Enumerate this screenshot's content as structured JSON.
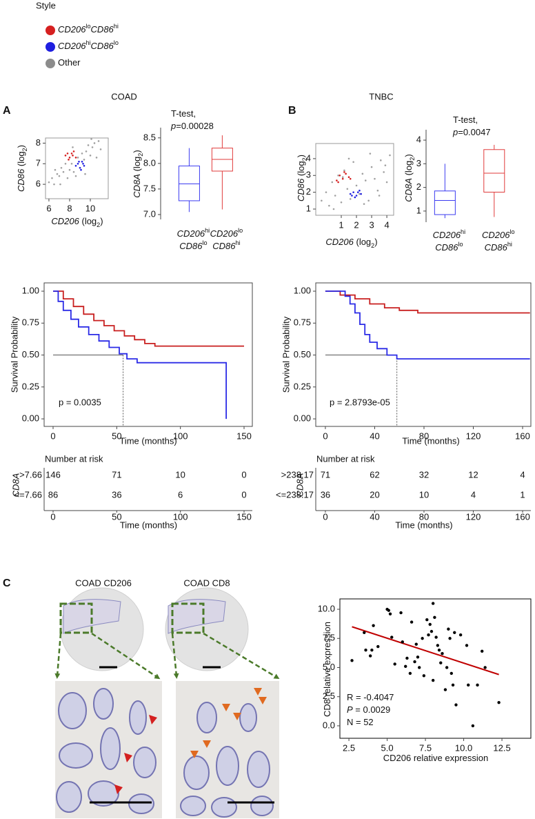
{
  "legend": {
    "title": "Style",
    "items": [
      {
        "color": "#d62020",
        "label": [
          {
            "t": "CD206",
            "s": "i"
          },
          {
            "t": "lo",
            "s": "sup"
          },
          {
            "t": "CD86",
            "s": "i"
          },
          {
            "t": "hi",
            "s": "sup"
          }
        ]
      },
      {
        "color": "#1f1fe0",
        "label": [
          {
            "t": "CD206",
            "s": "i"
          },
          {
            "t": "hi",
            "s": "sup"
          },
          {
            "t": "CD86",
            "s": "i"
          },
          {
            "t": "lo",
            "s": "sup"
          }
        ]
      },
      {
        "color": "#8c8c8c",
        "label": [
          {
            "t": "Other"
          }
        ]
      }
    ]
  },
  "panels": [
    {
      "letter": "A",
      "title": "COAD"
    },
    {
      "letter": "B",
      "title": "TNBC"
    },
    {
      "letter": "C"
    }
  ],
  "chart_data": [
    {
      "type": "scatter",
      "xlabel": [
        {
          "t": "CD206",
          "s": "i"
        },
        {
          "t": " (log"
        },
        {
          "t": "2",
          "s": "sub"
        },
        {
          "t": ")"
        }
      ],
      "ylabel": [
        {
          "t": "CD86",
          "s": "i"
        },
        {
          "t": " (log"
        },
        {
          "t": "2",
          "s": "sub"
        },
        {
          "t": ")"
        }
      ],
      "xlim": [
        5.67,
        11.73
      ],
      "ylim": [
        5.3,
        8.25
      ],
      "xticks": [
        6,
        8,
        10
      ],
      "yticks": [
        6,
        7,
        8
      ],
      "series": [
        {
          "color": "#a0a0a0",
          "x": [
            6.0,
            6.3,
            6.5,
            6.8,
            7.0,
            7.2,
            7.4,
            7.6,
            7.8,
            8.0,
            8.2,
            8.4,
            8.6,
            8.8,
            9.0,
            9.2,
            9.4,
            9.6,
            9.8,
            10.0,
            10.2,
            10.4,
            10.6,
            10.8,
            11.0,
            7.1,
            8.3,
            9.5,
            10.1,
            6.6
          ],
          "values": [
            6.1,
            6.3,
            6.0,
            6.5,
            6.4,
            6.8,
            6.6,
            7.0,
            6.3,
            6.7,
            7.0,
            6.6,
            6.4,
            7.3,
            6.8,
            7.5,
            7.2,
            7.6,
            7.9,
            7.4,
            7.8,
            8.0,
            7.3,
            8.1,
            7.7,
            6.0,
            7.8,
            6.5,
            8.2,
            6.7
          ]
        },
        {
          "color": "#d62020",
          "x": [
            7.6,
            7.8,
            8.0,
            8.2,
            8.4,
            8.6,
            7.9,
            8.3
          ],
          "values": [
            7.4,
            7.5,
            7.3,
            7.5,
            7.6,
            7.3,
            7.2,
            7.4
          ]
        },
        {
          "color": "#1f1fe0",
          "x": [
            8.6,
            8.8,
            9.0,
            9.2,
            9.4,
            9.1,
            8.9,
            9.3
          ],
          "values": [
            6.9,
            7.0,
            6.8,
            7.1,
            6.9,
            6.7,
            7.1,
            7.0
          ]
        }
      ]
    },
    {
      "type": "box",
      "annotation": [
        [
          {
            "t": "T-test,"
          }
        ],
        [
          {
            "t": "p",
            "s": "i"
          },
          {
            "t": "=0.00028"
          }
        ]
      ],
      "ylabel": [
        {
          "t": "CD8A",
          "s": "i"
        },
        {
          "t": " (log"
        },
        {
          "t": "2",
          "s": "sub"
        },
        {
          "t": ")"
        }
      ],
      "ylim": [
        6.905,
        8.7
      ],
      "yticks": [
        {
          "value": 7,
          "label": "7.0"
        },
        7.5,
        {
          "value": 8,
          "label": "8.0"
        },
        8.5
      ],
      "categories": [
        [
          [
            {
              "t": "CD206",
              "s": "i"
            },
            {
              "t": "hi",
              "s": "sup"
            }
          ],
          [
            {
              "t": "CD86",
              "s": "i"
            },
            {
              "t": "lo",
              "s": "sup"
            }
          ]
        ],
        [
          [
            {
              "t": "CD206",
              "s": "i"
            },
            {
              "t": "lo",
              "s": "sup"
            }
          ],
          [
            {
              "t": "CD86",
              "s": "i"
            },
            {
              "t": "hi",
              "s": "sup"
            }
          ]
        ]
      ],
      "boxes": [
        {
          "color": "#3a3af0",
          "whisker_low": 7.05,
          "q1": 7.27,
          "median": 7.6,
          "q3": 7.95,
          "whisker_high": 8.3
        },
        {
          "color": "#e03a3a",
          "whisker_low": 7.1,
          "q1": 7.85,
          "median": 8.08,
          "q3": 8.3,
          "whisker_high": 8.55
        }
      ]
    },
    {
      "type": "scatter",
      "xlabel": [
        {
          "t": "CD206",
          "s": "i"
        },
        {
          "t": "  (log"
        },
        {
          "t": "2",
          "s": "sub"
        },
        {
          "t": ")"
        }
      ],
      "ylabel": [
        {
          "t": "CD86",
          "s": "i"
        },
        {
          "t": " (log"
        },
        {
          "t": "2",
          "s": "sub"
        },
        {
          "t": ")"
        }
      ],
      "xlim": [
        -0.68,
        4.45
      ],
      "ylim": [
        0.63,
        4.9
      ],
      "xticks": [
        1,
        2,
        3,
        4
      ],
      "yticks": [
        1,
        2,
        3,
        4
      ],
      "series": [
        {
          "color": "#a0a0a0",
          "x": [
            -0.3,
            0,
            0.2,
            0.4,
            0.6,
            0.8,
            1.0,
            1.2,
            1.4,
            1.6,
            1.8,
            2.0,
            2.2,
            2.4,
            2.6,
            2.8,
            3.0,
            3.2,
            3.4,
            3.6,
            3.8,
            4.0,
            4.2,
            0.5,
            1.5,
            2.5,
            3.5,
            1.1,
            2.9,
            3.9
          ],
          "values": [
            1.5,
            2.0,
            1.2,
            2.6,
            1.8,
            3.0,
            1.4,
            3.3,
            2.2,
            1.6,
            3.8,
            2.4,
            1.9,
            3.1,
            2.7,
            1.5,
            3.5,
            2.8,
            2.1,
            3.9,
            3.2,
            2.6,
            4.2,
            1.0,
            4.0,
            1.3,
            1.8,
            2.9,
            4.3,
            3.6
          ]
        },
        {
          "color": "#d62020",
          "x": [
            0.7,
            0.9,
            1.1,
            1.3,
            1.5,
            0.8,
            1.2,
            1.6
          ],
          "values": [
            2.7,
            3.0,
            2.8,
            3.1,
            2.9,
            2.6,
            3.2,
            2.8
          ]
        },
        {
          "color": "#1f1fe0",
          "x": [
            1.6,
            1.8,
            2.0,
            2.2,
            1.9,
            2.1,
            1.7,
            2.3
          ],
          "values": [
            1.9,
            2.0,
            1.8,
            2.1,
            1.7,
            2.0,
            1.8,
            1.9
          ]
        }
      ]
    },
    {
      "type": "box",
      "annotation": [
        [
          {
            "t": "T-test,"
          }
        ],
        [
          {
            "t": "p",
            "s": "i"
          },
          {
            "t": "=0.0047"
          }
        ]
      ],
      "ylabel": [
        {
          "t": "CD8A",
          "s": "i"
        },
        {
          "t": " (log"
        },
        {
          "t": "2",
          "s": "sub"
        },
        {
          "t": ")"
        }
      ],
      "ylim": [
        0.53,
        4.44
      ],
      "yticks": [
        1,
        2,
        3,
        4
      ],
      "categories": [
        [
          [
            {
              "t": "CD206",
              "s": "i"
            },
            {
              "t": "hi",
              "s": "sup"
            }
          ],
          [
            {
              "t": "CD86",
              "s": "i"
            },
            {
              "t": "lo",
              "s": "sup"
            }
          ]
        ],
        [
          [
            {
              "t": "CD206",
              "s": "i"
            },
            {
              "t": "lo",
              "s": "sup"
            }
          ],
          [
            {
              "t": "CD86",
              "s": "i"
            },
            {
              "t": "hi",
              "s": "sup"
            }
          ]
        ]
      ],
      "boxes": [
        {
          "color": "#3a3af0",
          "whisker_low": 0.7,
          "q1": 0.85,
          "median": 1.45,
          "q3": 1.85,
          "whisker_high": 3.0
        },
        {
          "color": "#e03a3a",
          "whisker_low": 0.75,
          "q1": 1.8,
          "median": 2.6,
          "q3": 3.6,
          "whisker_high": 3.8
        }
      ]
    },
    {
      "type": "survival",
      "ylabel": "Survival Probability",
      "xlabel": "Time (months)",
      "annotation": "p = 0.0035",
      "xlim": [
        -7.04,
        156.5
      ],
      "ylim": [
        -0.059,
        1.065
      ],
      "xticks": [
        0,
        50,
        100,
        150
      ],
      "yticks": [
        {
          "value": 0,
          "label": "0.00"
        },
        {
          "value": 0.25,
          "label": "0.25"
        },
        {
          "value": 0.5,
          "label": "0.50"
        },
        {
          "value": 0.75,
          "label": "0.75"
        },
        {
          "value": 1,
          "label": "1.00"
        }
      ],
      "median_line": {
        "time": 55,
        "probability": 0.5
      },
      "series": [
        {
          "color": "#c81e1e",
          "x": [
            0,
            8,
            8,
            16,
            16,
            24,
            24,
            32,
            32,
            40,
            40,
            48,
            48,
            56,
            56,
            64,
            64,
            72,
            72,
            80,
            80,
            150
          ],
          "values": [
            1,
            1,
            0.94,
            0.94,
            0.88,
            0.88,
            0.82,
            0.82,
            0.77,
            0.77,
            0.73,
            0.73,
            0.69,
            0.69,
            0.65,
            0.65,
            0.62,
            0.62,
            0.59,
            0.59,
            0.57,
            0.57
          ]
        },
        {
          "color": "#2a2ae6",
          "x": [
            0,
            4,
            4,
            8,
            8,
            14,
            14,
            20,
            20,
            28,
            28,
            36,
            36,
            44,
            44,
            52,
            52,
            58,
            58,
            66,
            66,
            136,
            136
          ],
          "values": [
            1,
            1,
            0.92,
            0.92,
            0.85,
            0.85,
            0.78,
            0.78,
            0.72,
            0.72,
            0.66,
            0.66,
            0.61,
            0.61,
            0.56,
            0.56,
            0.51,
            0.51,
            0.47,
            0.47,
            0.44,
            0.44,
            0
          ]
        }
      ]
    },
    {
      "type": "survival",
      "ylabel": "Survival Probability",
      "xlabel": "Time (months)",
      "annotation": "p = 2.8793e-05",
      "xlim": [
        -7.8,
        166.7
      ],
      "ylim": [
        -0.059,
        1.065
      ],
      "xticks": [
        0,
        40,
        80,
        120,
        160
      ],
      "yticks": [
        {
          "value": 0,
          "label": "0.00"
        },
        {
          "value": 0.25,
          "label": "0.25"
        },
        {
          "value": 0.5,
          "label": "0.50"
        },
        {
          "value": 0.75,
          "label": "0.75"
        },
        {
          "value": 1,
          "label": "1.00"
        }
      ],
      "median_line": {
        "time": 58,
        "probability": 0.5
      },
      "series": [
        {
          "color": "#c81e1e",
          "x": [
            0,
            12,
            12,
            24,
            24,
            36,
            36,
            48,
            48,
            60,
            60,
            75,
            75,
            166
          ],
          "values": [
            1,
            1,
            0.97,
            0.97,
            0.94,
            0.94,
            0.9,
            0.9,
            0.87,
            0.87,
            0.85,
            0.85,
            0.83,
            0.83
          ]
        },
        {
          "color": "#2a2ae6",
          "x": [
            0,
            16,
            16,
            20,
            20,
            24,
            24,
            28,
            28,
            32,
            32,
            36,
            36,
            42,
            42,
            50,
            50,
            58,
            58,
            166
          ],
          "values": [
            1,
            1,
            0.96,
            0.96,
            0.9,
            0.9,
            0.83,
            0.83,
            0.74,
            0.74,
            0.66,
            0.66,
            0.6,
            0.6,
            0.55,
            0.55,
            0.5,
            0.5,
            0.47,
            0.47
          ]
        }
      ]
    },
    {
      "type": "scatter",
      "xlabel": [
        {
          "t": "CD206  relative expression"
        }
      ],
      "ylabel": [
        {
          "t": "CD8  relative expression"
        }
      ],
      "xlim": [
        1.91,
        14.39
      ],
      "ylim": [
        -1.07,
        10.89
      ],
      "xticks": [
        2.5,
        {
          "value": 5,
          "label": "5.0"
        },
        7.5,
        {
          "value": 10,
          "label": "10.0"
        },
        12.5
      ],
      "yticks": [
        {
          "value": 0,
          "label": "0.0"
        },
        2.5,
        {
          "value": 5,
          "label": "5.0"
        },
        7.5,
        {
          "value": 10,
          "label": "10.0"
        }
      ],
      "annotation": [
        [
          {
            "t": "R = -0.4047"
          }
        ],
        [
          {
            "t": "P",
            "s": "i"
          },
          {
            "t": " = 0.0029"
          }
        ],
        [
          {
            "t": "N = 52"
          }
        ]
      ],
      "fit": {
        "color": "#c00000",
        "x": [
          2.7,
          12.3
        ],
        "values": [
          8.5,
          4.4
        ]
      },
      "series": [
        {
          "color": "#000000",
          "x": [
            2.7,
            3.5,
            3.6,
            3.9,
            4.0,
            4.1,
            4.4,
            5.0,
            5.1,
            5.2,
            5.3,
            5.5,
            5.9,
            6.0,
            6.2,
            6.3,
            6.5,
            6.8,
            6.9,
            7.0,
            7.1,
            7.4,
            7.6,
            7.7,
            7.8,
            7.9,
            8.0,
            8.1,
            8.2,
            8.3,
            8.4,
            8.5,
            8.6,
            8.8,
            8.9,
            9.0,
            9.1,
            9.2,
            9.3,
            9.4,
            9.5,
            9.8,
            10.2,
            10.3,
            10.6,
            10.9,
            11.2,
            11.4,
            12.3,
            8.0,
            6.6,
            7.3
          ],
          "values": [
            5.6,
            8.0,
            6.5,
            6.0,
            6.5,
            8.6,
            6.8,
            10.0,
            9.9,
            9.6,
            7.6,
            5.3,
            9.7,
            7.2,
            5.1,
            5.8,
            4.5,
            5.5,
            7.0,
            5.9,
            5.0,
            4.3,
            9.1,
            7.8,
            8.7,
            8.1,
            10.5,
            9.3,
            7.6,
            6.9,
            6.5,
            5.4,
            6.2,
            3.1,
            5.0,
            8.3,
            7.5,
            4.5,
            3.5,
            8.0,
            1.8,
            7.8,
            6.9,
            3.5,
            0.0,
            3.5,
            6.4,
            5.0,
            2.0,
            3.9,
            8.9,
            7.5
          ]
        }
      ]
    }
  ],
  "risk_tables": [
    {
      "heading": "Number at risk",
      "variable": "CD8A",
      "times": [
        0,
        50,
        100,
        150
      ],
      "xlabel": "Time (months)",
      "rows": [
        {
          "label": ">7.66",
          "color": "#c81e1e",
          "counts": [
            146,
            71,
            10,
            0
          ]
        },
        {
          "label": "<=7.66",
          "color": "#2a2ae6",
          "counts": [
            86,
            36,
            6,
            0
          ]
        }
      ]
    },
    {
      "heading": "Number at risk",
      "variable": "CD8A",
      "times": [
        0,
        40,
        80,
        120,
        160
      ],
      "xlabel": "Time (months)",
      "rows": [
        {
          "label": ">238.17",
          "color": "#c81e1e",
          "counts": [
            71,
            62,
            32,
            12,
            4
          ]
        },
        {
          "label": "<=238.17",
          "color": "#2a2ae6",
          "counts": [
            36,
            20,
            10,
            4,
            1
          ]
        }
      ]
    }
  ],
  "ihc": {
    "images": [
      {
        "title": "COAD CD206"
      },
      {
        "title": "COAD CD8"
      }
    ]
  }
}
